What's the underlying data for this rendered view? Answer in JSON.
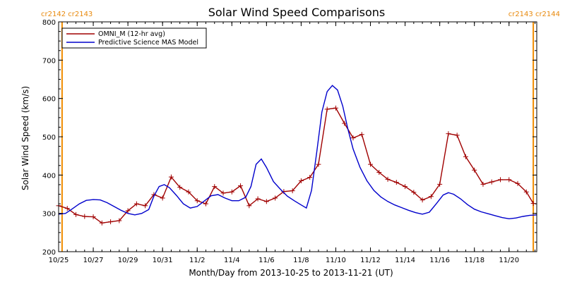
{
  "chart_data": {
    "type": "line",
    "title": "Solar Wind Speed Comparisons",
    "xlabel": "Month/Day from 2013-10-25 to 2013-11-21 (UT)",
    "ylabel": "Solar Wind Speed (km/s)",
    "ylim": [
      200,
      800
    ],
    "xlim_days": [
      0,
      27.6
    ],
    "x_ticks": [
      {
        "label": "10/25",
        "day": 0
      },
      {
        "label": "10/27",
        "day": 2
      },
      {
        "label": "10/29",
        "day": 4
      },
      {
        "label": "10/31",
        "day": 6
      },
      {
        "label": "11/2",
        "day": 8
      },
      {
        "label": "11/4",
        "day": 10
      },
      {
        "label": "11/6",
        "day": 12
      },
      {
        "label": "11/8",
        "day": 14
      },
      {
        "label": "11/10",
        "day": 16
      },
      {
        "label": "11/12",
        "day": 18
      },
      {
        "label": "11/14",
        "day": 20
      },
      {
        "label": "11/16",
        "day": 22
      },
      {
        "label": "11/18",
        "day": 24
      },
      {
        "label": "11/20",
        "day": 26
      }
    ],
    "y_ticks": [
      200,
      300,
      400,
      500,
      600,
      700,
      800
    ],
    "rotation_markers": [
      {
        "day": 0.2,
        "label": "cr2142 cr2143",
        "side": "left"
      },
      {
        "day": 27.4,
        "label": "cr2143 cr2144",
        "side": "right"
      }
    ],
    "legend": {
      "placement": "top-left"
    },
    "series": [
      {
        "name": "OMNI_M (12-hr avg)",
        "color": "#a00000",
        "marker": "plus",
        "points": [
          [
            0.0,
            320
          ],
          [
            0.5,
            313
          ],
          [
            1.0,
            297
          ],
          [
            1.5,
            292
          ],
          [
            2.0,
            291
          ],
          [
            2.5,
            275
          ],
          [
            3.0,
            278
          ],
          [
            3.5,
            281
          ],
          [
            4.0,
            307
          ],
          [
            4.5,
            325
          ],
          [
            5.0,
            320
          ],
          [
            5.5,
            349
          ],
          [
            6.0,
            340
          ],
          [
            6.5,
            395
          ],
          [
            7.0,
            368
          ],
          [
            7.5,
            356
          ],
          [
            8.0,
            333
          ],
          [
            8.5,
            325
          ],
          [
            9.0,
            370
          ],
          [
            9.5,
            353
          ],
          [
            10.0,
            356
          ],
          [
            10.5,
            372
          ],
          [
            11.0,
            320
          ],
          [
            11.5,
            338
          ],
          [
            12.0,
            331
          ],
          [
            12.5,
            340
          ],
          [
            13.0,
            357
          ],
          [
            13.5,
            359
          ],
          [
            14.0,
            385
          ],
          [
            14.5,
            394
          ],
          [
            15.0,
            428
          ],
          [
            15.5,
            572
          ],
          [
            16.0,
            575
          ],
          [
            16.5,
            535
          ],
          [
            17.0,
            497
          ],
          [
            17.5,
            506
          ],
          [
            18.0,
            428
          ],
          [
            18.5,
            407
          ],
          [
            19.0,
            389
          ],
          [
            19.5,
            381
          ],
          [
            20.0,
            370
          ],
          [
            20.5,
            355
          ],
          [
            21.0,
            335
          ],
          [
            21.5,
            344
          ],
          [
            22.0,
            376
          ],
          [
            22.5,
            508
          ],
          [
            23.0,
            504
          ],
          [
            23.5,
            448
          ],
          [
            24.0,
            413
          ],
          [
            24.5,
            376
          ],
          [
            25.0,
            382
          ],
          [
            25.5,
            388
          ],
          [
            26.0,
            388
          ],
          [
            26.5,
            378
          ],
          [
            27.0,
            356
          ],
          [
            27.4,
            326
          ]
        ]
      },
      {
        "name": "Predictive Science MAS Model",
        "color": "#0000cc",
        "marker": "none",
        "points": [
          [
            0.0,
            298
          ],
          [
            0.4,
            300
          ],
          [
            0.8,
            312
          ],
          [
            1.2,
            325
          ],
          [
            1.6,
            334
          ],
          [
            2.0,
            336
          ],
          [
            2.4,
            335
          ],
          [
            2.8,
            328
          ],
          [
            3.2,
            318
          ],
          [
            3.6,
            308
          ],
          [
            4.0,
            300
          ],
          [
            4.4,
            296
          ],
          [
            4.8,
            300
          ],
          [
            5.2,
            310
          ],
          [
            5.5,
            345
          ],
          [
            5.8,
            370
          ],
          [
            6.1,
            375
          ],
          [
            6.4,
            367
          ],
          [
            6.8,
            347
          ],
          [
            7.2,
            325
          ],
          [
            7.6,
            314
          ],
          [
            8.0,
            318
          ],
          [
            8.4,
            332
          ],
          [
            8.8,
            346
          ],
          [
            9.2,
            349
          ],
          [
            9.6,
            340
          ],
          [
            10.0,
            333
          ],
          [
            10.4,
            333
          ],
          [
            10.8,
            342
          ],
          [
            11.1,
            370
          ],
          [
            11.4,
            428
          ],
          [
            11.7,
            442
          ],
          [
            12.0,
            420
          ],
          [
            12.4,
            383
          ],
          [
            12.8,
            363
          ],
          [
            13.2,
            345
          ],
          [
            13.6,
            333
          ],
          [
            14.0,
            322
          ],
          [
            14.3,
            314
          ],
          [
            14.6,
            360
          ],
          [
            14.9,
            460
          ],
          [
            15.2,
            565
          ],
          [
            15.5,
            618
          ],
          [
            15.8,
            634
          ],
          [
            16.1,
            622
          ],
          [
            16.4,
            580
          ],
          [
            16.7,
            520
          ],
          [
            17.0,
            468
          ],
          [
            17.4,
            420
          ],
          [
            17.8,
            385
          ],
          [
            18.2,
            360
          ],
          [
            18.6,
            343
          ],
          [
            19.0,
            331
          ],
          [
            19.4,
            322
          ],
          [
            19.8,
            315
          ],
          [
            20.2,
            308
          ],
          [
            20.6,
            302
          ],
          [
            21.0,
            298
          ],
          [
            21.4,
            303
          ],
          [
            21.8,
            325
          ],
          [
            22.2,
            348
          ],
          [
            22.5,
            354
          ],
          [
            22.8,
            350
          ],
          [
            23.2,
            338
          ],
          [
            23.6,
            323
          ],
          [
            24.0,
            311
          ],
          [
            24.4,
            304
          ],
          [
            24.8,
            299
          ],
          [
            25.2,
            294
          ],
          [
            25.6,
            289
          ],
          [
            26.0,
            286
          ],
          [
            26.4,
            288
          ],
          [
            26.8,
            292
          ],
          [
            27.2,
            295
          ],
          [
            27.6,
            296
          ]
        ]
      }
    ]
  }
}
